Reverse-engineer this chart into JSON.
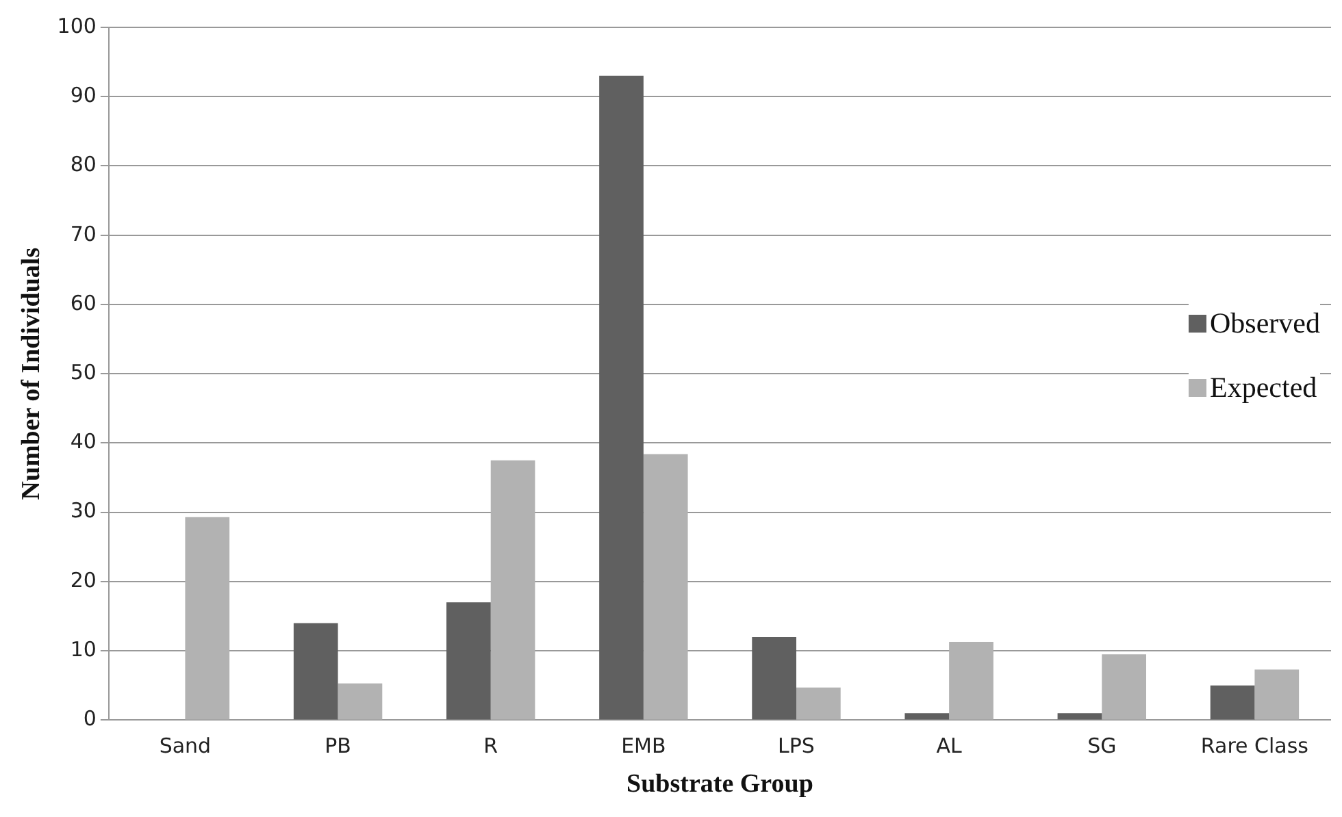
{
  "chart_data": {
    "type": "bar",
    "xlabel": "Substrate Group",
    "ylabel": "Number of Individuals",
    "categories": [
      "Sand",
      "PB",
      "R",
      "EMB",
      "LPS",
      "AL",
      "SG",
      "Rare Class"
    ],
    "series": [
      {
        "name": "Observed",
        "color": "#606060",
        "values": [
          0,
          14,
          17,
          93,
          12,
          1,
          1,
          5
        ]
      },
      {
        "name": "Expected",
        "color": "#b2b2b2",
        "values": [
          29.3,
          5.3,
          37.5,
          38.4,
          4.7,
          11.3,
          9.5,
          7.3
        ]
      }
    ],
    "ylim": [
      0,
      100
    ],
    "yticks": [
      0,
      10,
      20,
      30,
      40,
      50,
      60,
      70,
      80,
      90,
      100
    ],
    "grid": "y",
    "legend": "right"
  }
}
